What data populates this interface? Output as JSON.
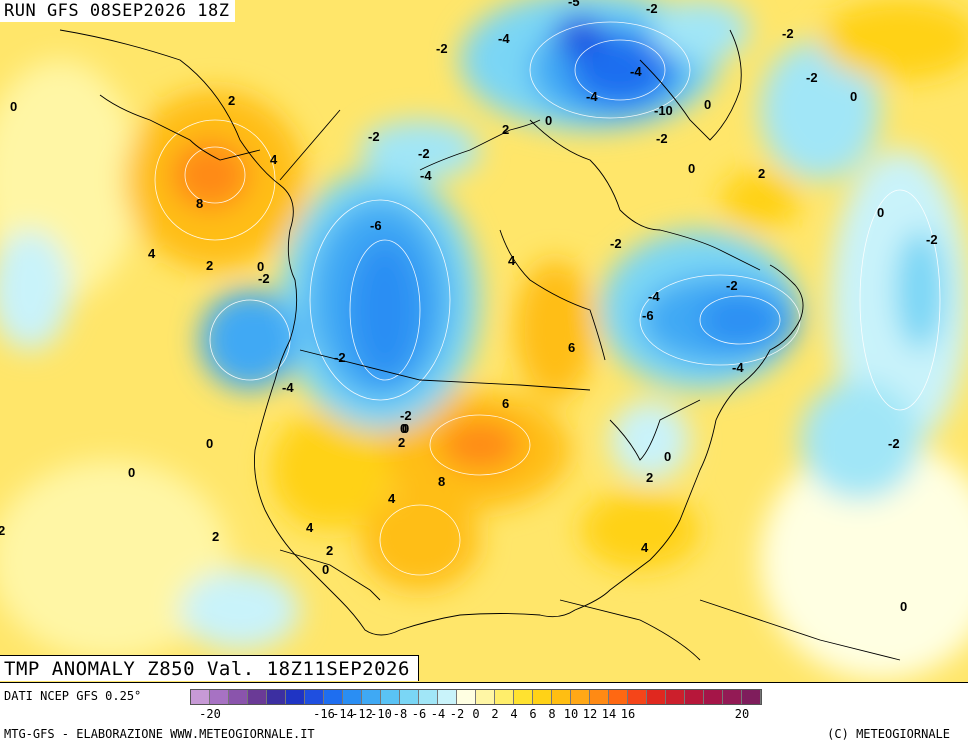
{
  "header": {
    "run_label": "RUN GFS 08SEP2026 18Z"
  },
  "title": {
    "text": "TMP ANOMALY Z850 Val. 18Z11SEP2026"
  },
  "footer": {
    "source": "DATI NCEP GFS 0.25°",
    "credit_left": "MTG-GFS - ELABORAZIONE WWW.METEOGIORNALE.IT",
    "credit_right": "(C) METEOGIORNALE"
  },
  "legend": {
    "colors": [
      "#c79ad6",
      "#a772c3",
      "#8a54ac",
      "#6a3a96",
      "#3c2fa1",
      "#1f34c4",
      "#1f4fe0",
      "#1e6ef0",
      "#2a8ef3",
      "#3fa9f4",
      "#5ac3f5",
      "#7ad6f5",
      "#a1e6f7",
      "#c9f3fa",
      "#ffffe2",
      "#fff6a5",
      "#ffee6b",
      "#ffe230",
      "#ffd217",
      "#ffbe12",
      "#ffa817",
      "#ff8a14",
      "#ff6812",
      "#f54519",
      "#e0281f",
      "#cc1f2c",
      "#b7173a",
      "#a51548",
      "#931a55",
      "#7f1d5c"
    ],
    "ticks": [
      "-20",
      "-16",
      "-14",
      "-12",
      "-10",
      "-8",
      "-6",
      "-4",
      "-2",
      "0",
      "2",
      "4",
      "6",
      "8",
      "10",
      "12",
      "14",
      "16",
      "20"
    ]
  },
  "contour_labels": [
    "-5",
    "-2",
    "-4",
    "-2",
    "-2",
    "-2",
    "-4",
    "-4",
    "-10",
    "0",
    "-2",
    "0",
    "2",
    "-2",
    "-2",
    "0",
    "-4",
    "0",
    "2",
    "0",
    "-2",
    "-6",
    "-2",
    "-4",
    "-6",
    "-2",
    "-4",
    "-2",
    "0",
    "4",
    "-4",
    "-2",
    "-2",
    "0",
    "4",
    "6",
    "8",
    "4",
    "2",
    "0",
    "2",
    "6",
    "0",
    "-2",
    "0",
    "2",
    "2",
    "8",
    "4",
    "2",
    "0",
    "4",
    "0",
    "2",
    "4",
    "0",
    "2",
    "0"
  ],
  "map": {
    "variable": "Temperature anomaly at 850 hPa (°C)"
  }
}
